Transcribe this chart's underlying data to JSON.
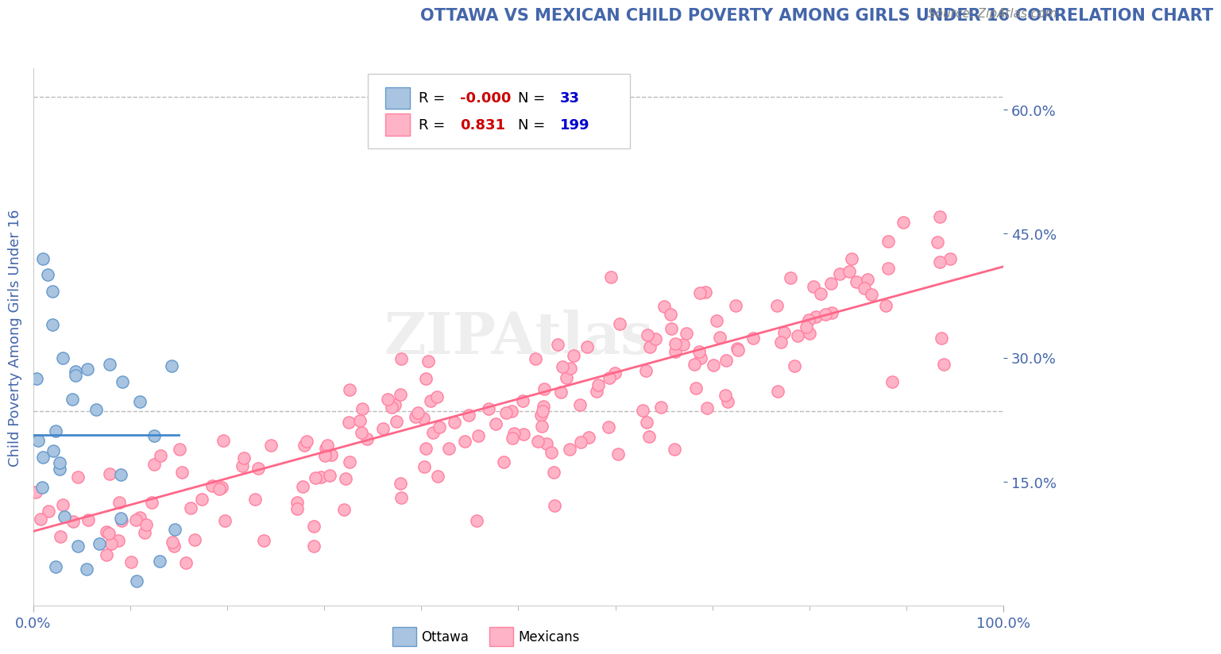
{
  "title": "OTTAWA VS MEXICAN CHILD POVERTY AMONG GIRLS UNDER 16 CORRELATION CHART",
  "source": "Source: ZipAtlas.com",
  "xlabel": "",
  "ylabel": "Child Poverty Among Girls Under 16",
  "xlim": [
    0,
    1.0
  ],
  "ylim": [
    0,
    0.65
  ],
  "yticks": [
    0.15,
    0.3,
    0.45,
    0.6
  ],
  "ytick_labels": [
    "15.0%",
    "30.0%",
    "45.0%",
    "60.0%"
  ],
  "xticks": [
    0.0,
    1.0
  ],
  "xtick_labels": [
    "0.0%",
    "100.0%"
  ],
  "ottawa_color": "#a8c4e0",
  "ottawa_edge_color": "#6699cc",
  "mexican_color": "#ffb3c6",
  "mexican_edge_color": "#ff80a0",
  "ottawa_line_color": "#4488cc",
  "mexican_line_color": "#ff6688",
  "legend_R_ottawa": "-0.000",
  "legend_N_ottawa": "33",
  "legend_R_mexican": "0.831",
  "legend_N_mexican": "199",
  "watermark": "ZIPAtlas",
  "background_color": "#ffffff",
  "grid_color": "#bbbbbb",
  "title_color": "#4466aa",
  "axis_label_color": "#4466aa",
  "tick_label_color": "#4466aa",
  "legend_R_color_ottawa": "#cc0000",
  "legend_R_color_mexican": "#cc0000",
  "legend_N_color": "#0000cc",
  "ottawa_seed": 42,
  "mexican_seed": 123
}
